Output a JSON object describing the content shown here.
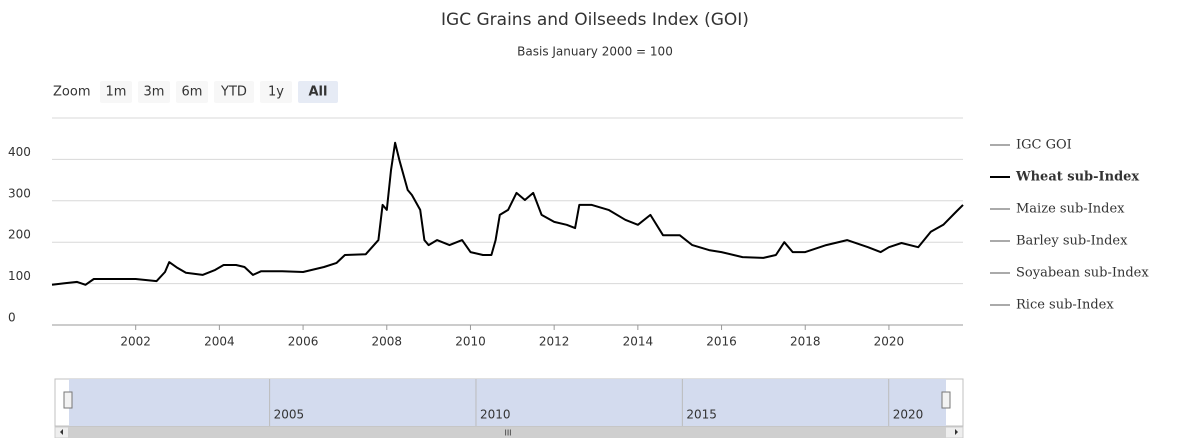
{
  "chart_data": {
    "type": "line",
    "title": "IGC Grains and Oilseeds Index (GOI)",
    "subtitle": "Basis January 2000 = 100",
    "range_selector": {
      "label": "Zoom",
      "buttons": [
        "1m",
        "3m",
        "6m",
        "YTD",
        "1y",
        "All"
      ],
      "selected": 5
    },
    "x": [
      2000.0,
      2000.3,
      2000.6,
      2000.8,
      2001.0,
      2001.5,
      2002.0,
      2002.5,
      2002.7,
      2002.8,
      2003.0,
      2003.2,
      2003.6,
      2003.9,
      2004.1,
      2004.4,
      2004.6,
      2004.8,
      2005.0,
      2005.5,
      2006.0,
      2006.5,
      2006.8,
      2007.0,
      2007.5,
      2007.8,
      2007.9,
      2008.0,
      2008.1,
      2008.2,
      2008.3,
      2008.5,
      2008.6,
      2008.8,
      2008.9,
      2009.0,
      2009.2,
      2009.5,
      2009.8,
      2010.0,
      2010.3,
      2010.5,
      2010.6,
      2010.7,
      2010.9,
      2011.1,
      2011.3,
      2011.5,
      2011.7,
      2012.0,
      2012.3,
      2012.5,
      2012.6,
      2012.9,
      2013.3,
      2013.7,
      2014.0,
      2014.3,
      2014.6,
      2015.0,
      2015.3,
      2015.7,
      2016.0,
      2016.5,
      2017.0,
      2017.3,
      2017.5,
      2017.7,
      2018.0,
      2018.5,
      2019.0,
      2019.5,
      2019.8,
      2020.0,
      2020.3,
      2020.7,
      2021.0,
      2021.3,
      2021.6,
      2021.77
    ],
    "values": [
      97,
      101,
      104,
      97,
      111,
      111,
      111,
      106,
      128,
      152,
      138,
      126,
      121,
      133,
      145,
      145,
      140,
      121,
      130,
      130,
      128,
      140,
      150,
      169,
      171,
      205,
      290,
      278,
      374,
      440,
      399,
      326,
      314,
      278,
      205,
      193,
      205,
      193,
      205,
      176,
      169,
      169,
      205,
      266,
      278,
      319,
      302,
      319,
      266,
      249,
      242,
      234,
      290,
      290,
      278,
      254,
      242,
      266,
      217,
      217,
      193,
      181,
      176,
      164,
      162,
      169,
      200,
      176,
      176,
      193,
      205,
      188,
      176,
      188,
      198,
      188,
      225,
      242,
      273,
      290
    ],
    "color": "#000000",
    "xlim": [
      2000.0,
      2021.77
    ],
    "xticks": [
      2002,
      2004,
      2006,
      2008,
      2010,
      2012,
      2014,
      2016,
      2018,
      2020
    ],
    "ylim": [
      0,
      500
    ],
    "yticks": [
      0,
      100,
      200,
      300,
      400
    ],
    "grid": true,
    "legend": {
      "position": "right",
      "items": [
        {
          "name": "IGC GOI",
          "visible": false
        },
        {
          "name": "Wheat sub-Index",
          "visible": true
        },
        {
          "name": "Maize sub-Index",
          "visible": false
        },
        {
          "name": "Barley sub-Index",
          "visible": false
        },
        {
          "name": "Soyabean sub-Index",
          "visible": false
        },
        {
          "name": "Rice sub-Index",
          "visible": false
        }
      ]
    },
    "navigator": {
      "xlim": [
        1999.8,
        2021.8
      ],
      "xticks": [
        2005,
        2010,
        2015,
        2020
      ],
      "scrollbar_label": "III"
    }
  }
}
